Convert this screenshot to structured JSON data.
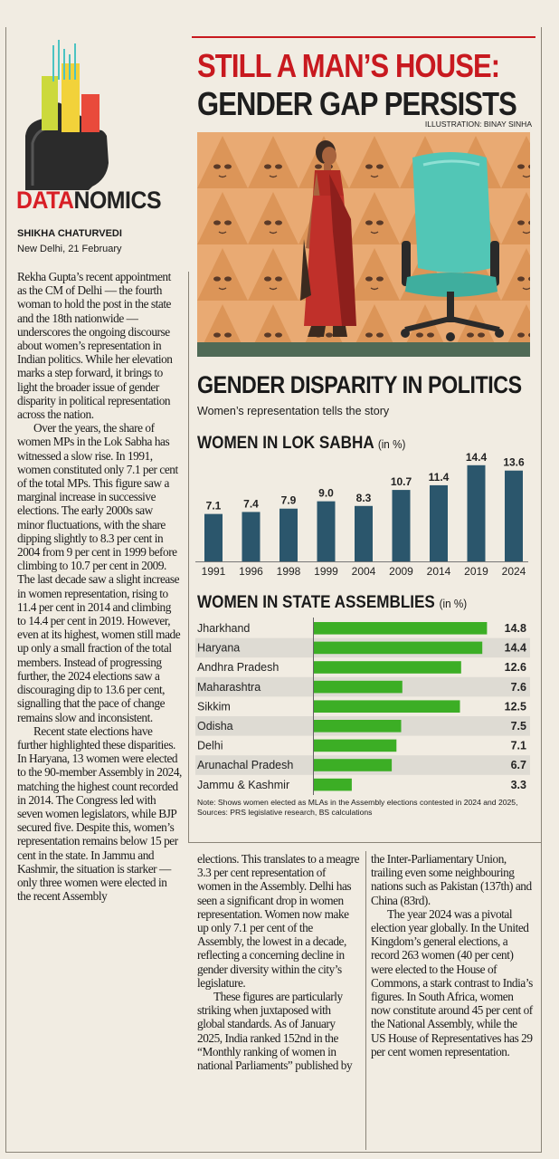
{
  "brand": {
    "part1": "DATA",
    "part2": "NOMICS"
  },
  "byline": "SHIKHA CHATURVEDI",
  "dateline": "New Delhi, 21 February",
  "headline": {
    "line1": "STILL A MAN’S HOUSE:",
    "line2": "GENDER GAP PERSISTS"
  },
  "illustration_credit": "ILLUSTRATION: BINAY SINHA",
  "section": {
    "title": "GENDER DISPARITY IN POLITICS",
    "subtitle": "Women’s representation tells the story"
  },
  "chart_data": [
    {
      "type": "bar",
      "title": "WOMEN IN LOK SABHA",
      "unit": "(in %)",
      "categories": [
        "1991",
        "1996",
        "1998",
        "1999",
        "2004",
        "2009",
        "2014",
        "2019",
        "2024"
      ],
      "values": [
        7.1,
        7.4,
        7.9,
        9.0,
        8.3,
        10.7,
        11.4,
        14.4,
        13.6
      ],
      "value_labels": [
        "7.1",
        "7.4",
        "7.9",
        "9.0",
        "8.3",
        "10.7",
        "11.4",
        "14.4",
        "13.6"
      ],
      "ylim": [
        0,
        16
      ],
      "color": "#2b566c"
    },
    {
      "type": "bar",
      "orientation": "horizontal",
      "title": "WOMEN IN STATE ASSEMBLIES",
      "unit": "(in %)",
      "categories": [
        "Jharkhand",
        "Haryana",
        "Andhra Pradesh",
        "Maharashtra",
        "Sikkim",
        "Odisha",
        "Delhi",
        "Arunachal Pradesh",
        "Jammu & Kashmir"
      ],
      "values": [
        14.8,
        14.4,
        12.6,
        7.6,
        12.5,
        7.5,
        7.1,
        6.7,
        3.3
      ],
      "value_labels": [
        "14.8",
        "14.4",
        "12.6",
        "7.6",
        "12.5",
        "7.5",
        "7.1",
        "6.7",
        "3.3"
      ],
      "xlim": [
        0,
        16
      ],
      "color": "#3cae25",
      "row_shading": "#dedbd3"
    }
  ],
  "note": "Note: Shows women elected as MLAs in the Assembly elections contested in 2024 and 2025, Sources: PRS legislative research, BS calculations",
  "article": {
    "col1": [
      "Rekha Gupta’s recent appointment as the CM of Delhi — the fourth woman to hold the post in the state and the 18th nationwide — underscores the ongoing discourse about women’s representation in Indian politics. While her elevation marks a step forward, it brings to light the broader issue of gender disparity in political representation across the nation.",
      "Over the years, the share of women MPs in the Lok Sabha has witnessed a slow rise. In 1991, women constituted only 7.1 per cent of the total MPs. This figure saw a marginal increase in successive elections. The early 2000s saw minor fluctuations, with the share dipping slightly to 8.3 per cent in 2004 from 9 per cent in 1999 before climbing to 10.7 per cent in 2009. The last decade saw a slight increase in women representation, rising to 11.4 per cent in 2014 and climbing to 14.4 per cent in 2019. However, even at its highest, women still made up only a small fraction of the total members. Instead of progressing further, the 2024 elections saw a discouraging dip to 13.6 per cent, signalling that the pace of change remains slow and inconsistent.",
      "Recent state elections have further highlighted these disparities. In Haryana, 13 women were elected to the 90-member Assembly in 2024, matching the highest count recorded in 2014. The Congress led with seven women legislators, while BJP secured five. Despite this, women’s representation remains below 15 per cent in the state. In Jammu and Kashmir, the situation is starker — only three women were elected in the recent Assembly"
    ],
    "col2": [
      "elections. This translates to a meagre 3.3 per cent representation of women in the Assembly. Delhi has seen a significant drop in women representation. Women now make up only 7.1 per cent of the Assembly, the lowest in a decade, reflecting a concerning decline in gender diversity within the city’s legislature.",
      "These figures are particularly striking when juxtaposed with global standards. As of January 2025, India ranked 152nd in the “Monthly ranking of women in national Parliaments” published by"
    ],
    "col3": [
      "the Inter-Parliamentary Union, trailing even some neighbouring nations such as Pakistan (137th) and China (83rd).",
      "The year 2024 was a pivotal election year globally. In the United Kingdom’s general elections, a record 263 women (40 per cent) were elected to the House of Commons, a stark contrast to India’s figures. In South Africa, women now constitute around 45 per cent of the National Assembly, while the US House of Representatives has 29 per cent women representation."
    ]
  }
}
